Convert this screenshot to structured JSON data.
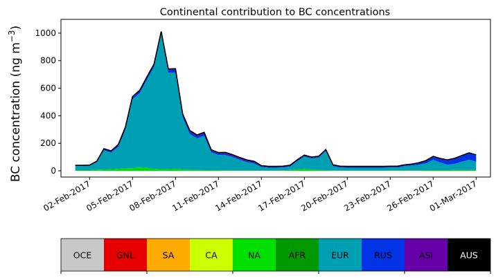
{
  "chart_data": {
    "type": "area",
    "stacked": true,
    "title": "Continental contribution to BC concentrations",
    "ylabel_parts": {
      "main": "BC concentration (ng m",
      "sup": "−3",
      "close": ")"
    },
    "xlabel": "",
    "ylim": [
      -45,
      1100
    ],
    "xlim": [
      "2017-01-31",
      "2017-03-02"
    ],
    "yticks": [
      0,
      200,
      400,
      600,
      800,
      1000
    ],
    "xticks": [
      "02-Feb-2017",
      "05-Feb-2017",
      "08-Feb-2017",
      "11-Feb-2017",
      "14-Feb-2017",
      "17-Feb-2017",
      "20-Feb-2017",
      "23-Feb-2017",
      "26-Feb-2017",
      "01-Mar-2017"
    ],
    "legend_placement": "bottom",
    "legend": [
      {
        "label": "OCE",
        "color": "#c8c8c8",
        "text_color": "#000000"
      },
      {
        "label": "GNL",
        "color": "#e60000",
        "text_color": "#000000"
      },
      {
        "label": "SA",
        "color": "#ffaa00",
        "text_color": "#000000"
      },
      {
        "label": "CA",
        "color": "#ccff00",
        "text_color": "#000000"
      },
      {
        "label": "NA",
        "color": "#00e000",
        "text_color": "#000000"
      },
      {
        "label": "AFR",
        "color": "#009900",
        "text_color": "#000000"
      },
      {
        "label": "EUR",
        "color": "#00a0b4",
        "text_color": "#000000"
      },
      {
        "label": "RUS",
        "color": "#0032e6",
        "text_color": "#000000"
      },
      {
        "label": "ASI",
        "color": "#6600a8",
        "text_color": "#000000"
      },
      {
        "label": "AUS",
        "color": "#000000",
        "text_color": "#ffffff"
      }
    ],
    "x": [
      "2017-02-01",
      "2017-02-01T12",
      "2017-02-02",
      "2017-02-02T12",
      "2017-02-03",
      "2017-02-03T12",
      "2017-02-04",
      "2017-02-04T12",
      "2017-02-05",
      "2017-02-05T12",
      "2017-02-06",
      "2017-02-06T12",
      "2017-02-07",
      "2017-02-07T12",
      "2017-02-08",
      "2017-02-08T12",
      "2017-02-09",
      "2017-02-09T12",
      "2017-02-10",
      "2017-02-10T12",
      "2017-02-11",
      "2017-02-11T12",
      "2017-02-12",
      "2017-02-12T12",
      "2017-02-13",
      "2017-02-13T12",
      "2017-02-14",
      "2017-02-14T12",
      "2017-02-15",
      "2017-02-15T12",
      "2017-02-16",
      "2017-02-16T12",
      "2017-02-17",
      "2017-02-17T12",
      "2017-02-18",
      "2017-02-18T12",
      "2017-02-19",
      "2017-02-19T12",
      "2017-02-20",
      "2017-02-20T12",
      "2017-02-21",
      "2017-02-21T12",
      "2017-02-22",
      "2017-02-22T12",
      "2017-02-23",
      "2017-02-23T12",
      "2017-02-24",
      "2017-02-24T12",
      "2017-02-25",
      "2017-02-25T12",
      "2017-02-26",
      "2017-02-26T12",
      "2017-02-27",
      "2017-02-27T12",
      "2017-02-28",
      "2017-02-28T12",
      "2017-03-01"
    ],
    "series": [
      {
        "name": "NA",
        "values": [
          5,
          5,
          5,
          8,
          10,
          12,
          15,
          18,
          20,
          25,
          22,
          15,
          12,
          12,
          14,
          10,
          8,
          6,
          5,
          5,
          5,
          4,
          4,
          4,
          3,
          3,
          3,
          3,
          3,
          4,
          6,
          10,
          14,
          10,
          6,
          5,
          4,
          4,
          3,
          3,
          3,
          3,
          3,
          3,
          4,
          4,
          4,
          4,
          4,
          5,
          5,
          5,
          5,
          6,
          6,
          6,
          6
        ]
      },
      {
        "name": "EUR",
        "values": [
          30,
          30,
          32,
          55,
          140,
          120,
          160,
          280,
          500,
          540,
          640,
          740,
          980,
          700,
          700,
          380,
          260,
          230,
          250,
          130,
          110,
          110,
          95,
          75,
          60,
          50,
          25,
          20,
          20,
          20,
          25,
          60,
          90,
          80,
          90,
          140,
          30,
          20,
          20,
          20,
          20,
          20,
          20,
          20,
          20,
          20,
          30,
          35,
          40,
          50,
          75,
          55,
          40,
          45,
          60,
          75,
          60
        ]
      },
      {
        "name": "RUS",
        "values": [
          3,
          3,
          3,
          5,
          8,
          10,
          12,
          15,
          15,
          15,
          15,
          15,
          15,
          20,
          20,
          15,
          15,
          15,
          15,
          10,
          10,
          10,
          8,
          8,
          8,
          8,
          5,
          5,
          5,
          5,
          5,
          5,
          5,
          5,
          5,
          5,
          5,
          5,
          5,
          5,
          5,
          5,
          5,
          5,
          5,
          5,
          5,
          5,
          10,
          15,
          20,
          25,
          30,
          35,
          40,
          45,
          45
        ]
      },
      {
        "name": "ASI",
        "values": [
          2,
          2,
          2,
          2,
          3,
          3,
          4,
          5,
          5,
          5,
          5,
          5,
          5,
          8,
          8,
          8,
          10,
          10,
          10,
          8,
          8,
          10,
          10,
          10,
          8,
          8,
          5,
          5,
          5,
          5,
          5,
          5,
          5,
          5,
          5,
          5,
          5,
          5,
          5,
          5,
          5,
          5,
          5,
          5,
          5,
          5,
          5,
          5,
          5,
          5,
          5,
          5,
          5,
          5,
          5,
          5,
          5
        ]
      }
    ],
    "total_line": {
      "color": "#000000"
    }
  }
}
